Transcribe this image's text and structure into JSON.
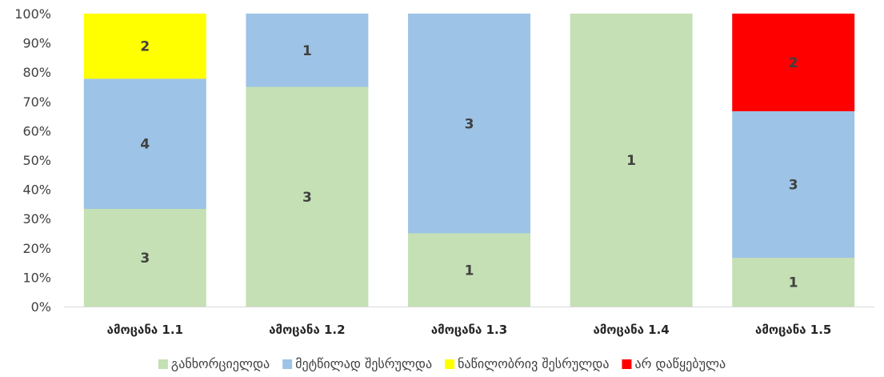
{
  "chart_data": {
    "type": "bar",
    "stacked": "percent",
    "categories": [
      "ამოცანა 1.1",
      "ამოცანა 1.2",
      "ამოცანა 1.3",
      "ამოცანა 1.4",
      "ამოცანა 1.5"
    ],
    "series": [
      {
        "name": "განხორციელდა",
        "color": "#c5e0b4",
        "values": [
          3,
          3,
          1,
          1,
          1
        ]
      },
      {
        "name": "მეტწილად შესრულდა",
        "color": "#9dc3e6",
        "values": [
          4,
          1,
          3,
          0,
          3
        ]
      },
      {
        "name": "ნაწილობრივ შესრულდა",
        "color": "#ffff00",
        "values": [
          2,
          0,
          0,
          0,
          0
        ]
      },
      {
        "name": "არ დაწყებულა",
        "color": "#ff0000",
        "values": [
          0,
          0,
          0,
          0,
          2
        ]
      }
    ],
    "y_ticks": [
      "0%",
      "10%",
      "20%",
      "30%",
      "40%",
      "50%",
      "60%",
      "70%",
      "80%",
      "90%",
      "100%"
    ],
    "ylim": [
      0,
      100
    ],
    "grid": false,
    "legend_position": "bottom",
    "title": "",
    "xlabel": "",
    "ylabel": ""
  }
}
